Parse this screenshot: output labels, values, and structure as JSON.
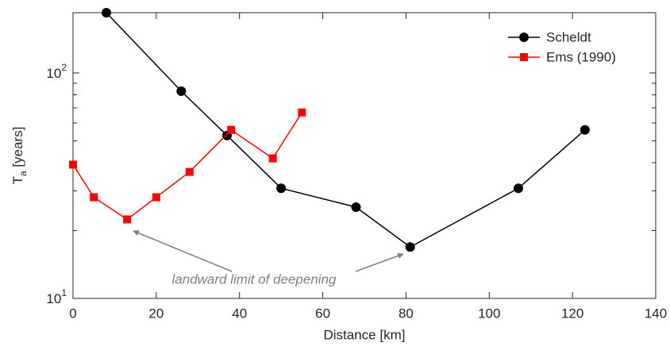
{
  "chart_data": {
    "type": "line",
    "xlabel": "Distance [km]",
    "ylabel": "T_a [years]",
    "xlim": [
      0,
      140
    ],
    "xticks": [
      0,
      20,
      40,
      60,
      80,
      100,
      120,
      140
    ],
    "ylim": [
      10,
      185
    ],
    "yscale": "log",
    "yticks": [
      {
        "value": 10,
        "label": "10^1"
      },
      {
        "value": 100,
        "label": "10^2"
      }
    ],
    "yminorticks": [
      20,
      30,
      40,
      50,
      60,
      70,
      80,
      90
    ],
    "legend": "upper right",
    "annotation": "landward limit of deepening",
    "series": [
      {
        "name": "Scheldt",
        "color": "#000000",
        "marker": "circle",
        "x": [
          8,
          26,
          37,
          50,
          68,
          81,
          107,
          123
        ],
        "values": [
          185,
          83,
          52.8,
          30.8,
          25.4,
          16.9,
          30.8,
          55.9
        ]
      },
      {
        "name": "Ems (1990)",
        "color": "#ff0000",
        "marker": "square",
        "x": [
          0,
          5,
          13,
          20,
          28,
          38,
          48,
          55
        ],
        "values": [
          39.2,
          28.1,
          22.4,
          28.1,
          36.4,
          55.9,
          41.8,
          66.8
        ]
      }
    ]
  }
}
